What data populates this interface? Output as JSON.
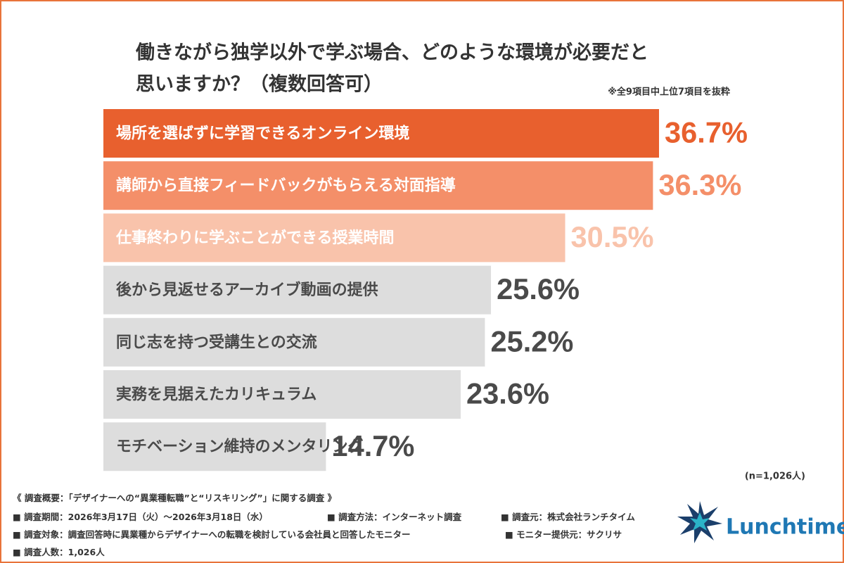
{
  "chart_data": {
    "type": "bar",
    "orientation": "horizontal",
    "title_lines": [
      "働きながら独学以外で学ぶ場合、どのような環境が必要だと",
      "思いますか？（複数回答可）"
    ],
    "subtitle": "※全9項目中上位7項目を抜粋",
    "categories": [
      "場所を選ばずに学習できるオンライン環境",
      "講師から直接フィードバックがもらえる対面指導",
      "仕事終わりに学ぶことができる授業時間",
      "後から見返せるアーカイブ動画の提供",
      "同じ志を持つ受講生との交流",
      "実務を見据えたカリキュラム",
      "モチベーション維持のメンタリング"
    ],
    "values": [
      36.7,
      36.3,
      30.5,
      25.6,
      25.2,
      23.6,
      14.7
    ],
    "value_labels": [
      "36.7%",
      "36.3%",
      "30.5%",
      "25.6%",
      "25.2%",
      "23.6%",
      "14.7%"
    ],
    "colors": [
      "#e8602e",
      "#f48f69",
      "#f9c3ab",
      "#dddddd",
      "#dddddd",
      "#dddddd",
      "#dddddd"
    ],
    "label_colors": [
      "#e8602e",
      "#f48f69",
      "#f9c3ab",
      "#4a4a4a",
      "#4a4a4a",
      "#4a4a4a",
      "#4a4a4a"
    ],
    "category_colors": [
      "#ffffff",
      "#ffffff",
      "#ffffff",
      "#4a4a4a",
      "#4a4a4a",
      "#4a4a4a",
      "#4a4a4a"
    ],
    "sample_note": "(n=1,026人)"
  },
  "footer": {
    "heading": "《 調査概要：「デザイナーへの“異業種転職”と“リスキリング”」に関する調査 》",
    "items": [
      "■ 調査期間：2026年3月17日（火）〜2026年3月18日（水）",
      "■ 調査方法：インターネット調査",
      "■ 調査元：株式会社ランチタイム",
      "■ 調査対象：調査回答時に異業種からデザイナーへの転職を検討している会社員と回答したモニター",
      "■ モニター提供元：サクリサ",
      "■ 調査人数：1,026人"
    ],
    "logo": "Lunchtime"
  }
}
